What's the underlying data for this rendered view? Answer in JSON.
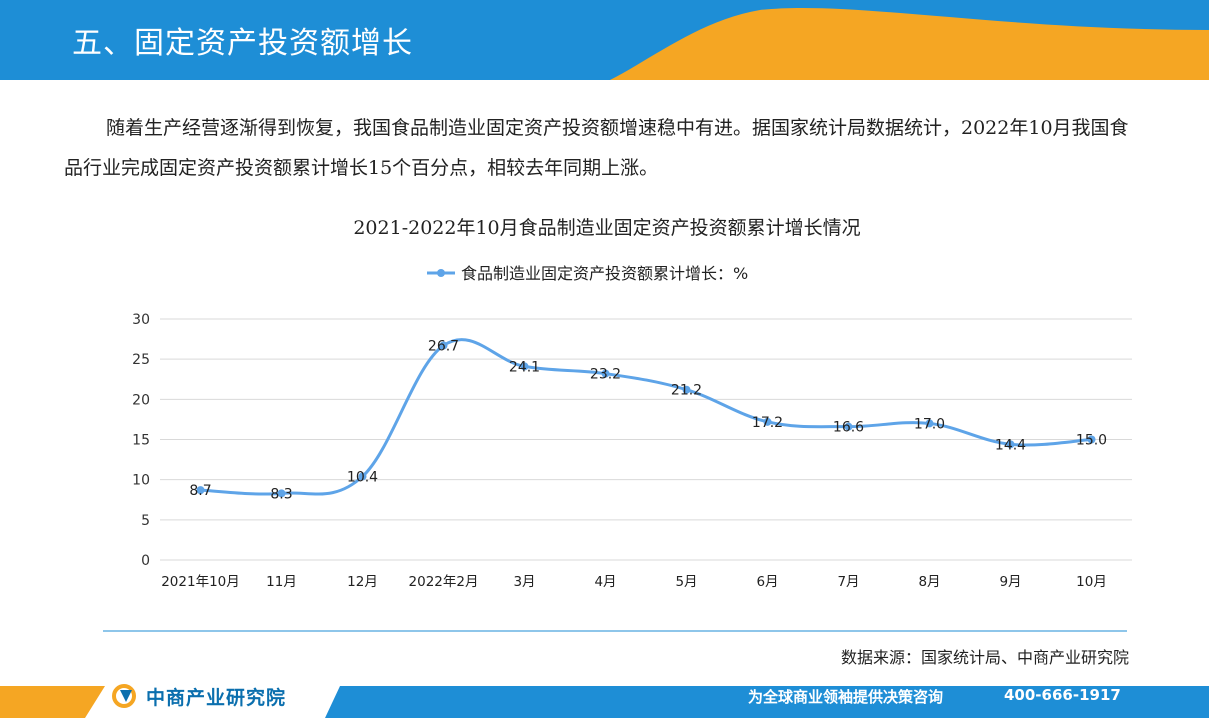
{
  "header": {
    "title": "五、固定资产投资额增长"
  },
  "body": {
    "paragraph": "随着生产经营逐渐得到恢复，我国食品制造业固定资产投资额增速稳中有进。据国家统计局数据统计，2022年10月我国食品行业完成固定资产投资额累计增长15个百分点，相较去年同期上涨。"
  },
  "chart_data": {
    "type": "line",
    "title": "2021-2022年10月食品制造业固定资产投资额累计增长情况",
    "categories": [
      "2021年10月",
      "11月",
      "12月",
      "2022年2月",
      "3月",
      "4月",
      "5月",
      "6月",
      "7月",
      "8月",
      "9月",
      "10月"
    ],
    "series": [
      {
        "name": "食品制造业固定资产投资额累计增长：%",
        "values": [
          8.7,
          8.3,
          10.4,
          26.7,
          24.1,
          23.2,
          21.2,
          17.2,
          16.6,
          17.0,
          14.4,
          15.0
        ],
        "labels": [
          "8.7",
          "8.3",
          "10.4",
          "26.7",
          "24.1",
          "23.2",
          "21.2",
          "17.2",
          "16.6",
          "17.0",
          "14.4",
          "15.0"
        ]
      }
    ],
    "ylim": [
      0,
      30
    ],
    "yticks": [
      0,
      5,
      10,
      15,
      20,
      25,
      30
    ],
    "grid": true,
    "legend": "top",
    "line_color": "#5ea4e8"
  },
  "source": "数据来源：国家统计局、中商产业研究院",
  "footer": {
    "logo": "中商产业研究院",
    "slogan": "为全球商业领袖提供决策咨询",
    "phone": "400-666-1917"
  },
  "colors": {
    "brand_blue": "#1e8ed6",
    "accent_orange": "#f5a623",
    "logo_blue": "#0b6fae"
  }
}
